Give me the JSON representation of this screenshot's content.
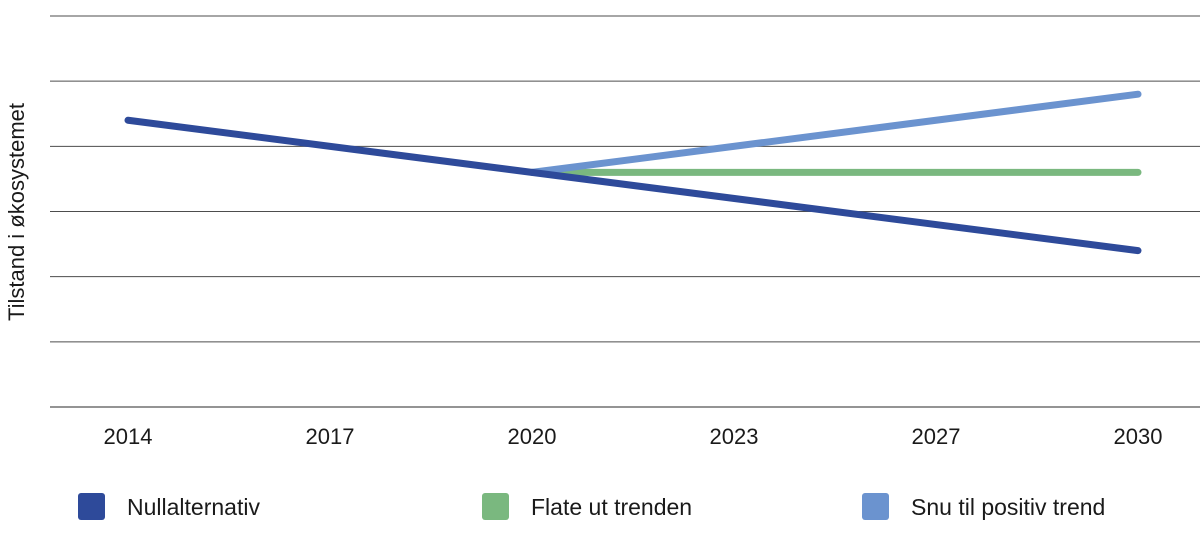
{
  "chart_data": {
    "type": "line",
    "title": "",
    "xlabel": "",
    "ylabel": "Tilstand i økosystemet",
    "categories": [
      "2014",
      "2017",
      "2020",
      "2023",
      "2027",
      "2030"
    ],
    "ylim": [
      0,
      6
    ],
    "y_ticks": [
      0,
      1,
      2,
      3,
      4,
      5,
      6
    ],
    "y_tick_labels_shown": false,
    "grid": true,
    "legend_position": "bottom",
    "series": [
      {
        "name": "Nullalternativ",
        "color": "#2e4a9a",
        "points": [
          {
            "x": 0,
            "y": 4.4
          },
          {
            "x": 5,
            "y": 2.4
          }
        ]
      },
      {
        "name": "Flate ut trenden",
        "color": "#7ab87f",
        "points": [
          {
            "x": 2,
            "y": 3.6
          },
          {
            "x": 5,
            "y": 3.6
          }
        ]
      },
      {
        "name": "Snu til positiv trend",
        "color": "#6b93cf",
        "points": [
          {
            "x": 2,
            "y": 3.6
          },
          {
            "x": 5,
            "y": 4.8
          }
        ]
      }
    ]
  }
}
